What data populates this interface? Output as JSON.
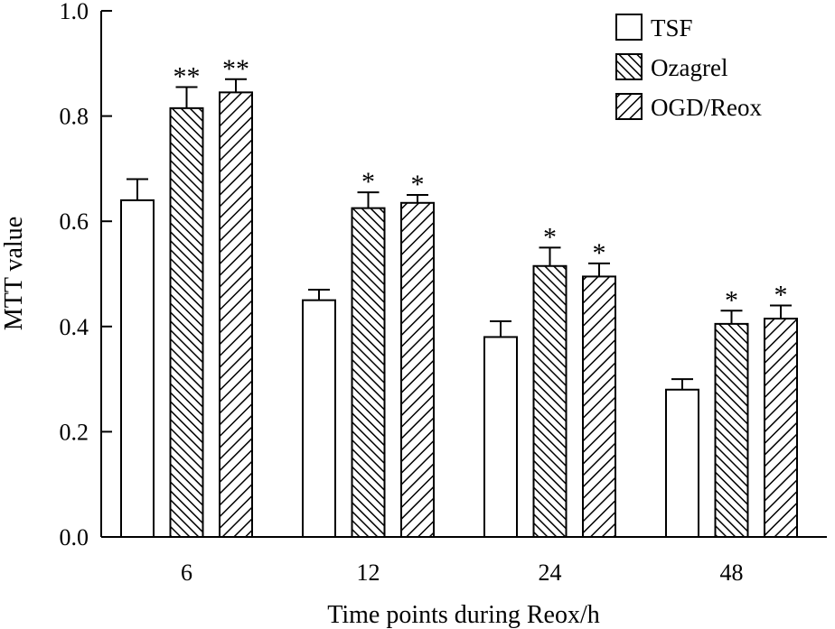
{
  "chart_data": {
    "type": "bar",
    "title": "",
    "xlabel": "Time points during Reox/h",
    "ylabel": "MTT value",
    "ylim": [
      0,
      1.0
    ],
    "yticks": [
      "0.0",
      "0.2",
      "0.4",
      "0.6",
      "0.8",
      "1.0"
    ],
    "categories": [
      "6",
      "12",
      "24",
      "48"
    ],
    "legend_position": "top-right",
    "series": [
      {
        "name": "TSF",
        "pattern": "none",
        "values": [
          0.64,
          0.45,
          0.38,
          0.28
        ],
        "errors": [
          0.04,
          0.02,
          0.03,
          0.02
        ],
        "significance": [
          "",
          "",
          "",
          ""
        ]
      },
      {
        "name": "Ozagrel",
        "pattern": "back-diagonal",
        "values": [
          0.815,
          0.625,
          0.515,
          0.405
        ],
        "errors": [
          0.04,
          0.03,
          0.035,
          0.025
        ],
        "significance": [
          "**",
          "*",
          "*",
          "*"
        ]
      },
      {
        "name": "OGD/Reox",
        "pattern": "forward-diagonal",
        "values": [
          0.845,
          0.635,
          0.495,
          0.415
        ],
        "errors": [
          0.025,
          0.015,
          0.025,
          0.025
        ],
        "significance": [
          "**",
          "*",
          "*",
          "*"
        ]
      }
    ]
  }
}
